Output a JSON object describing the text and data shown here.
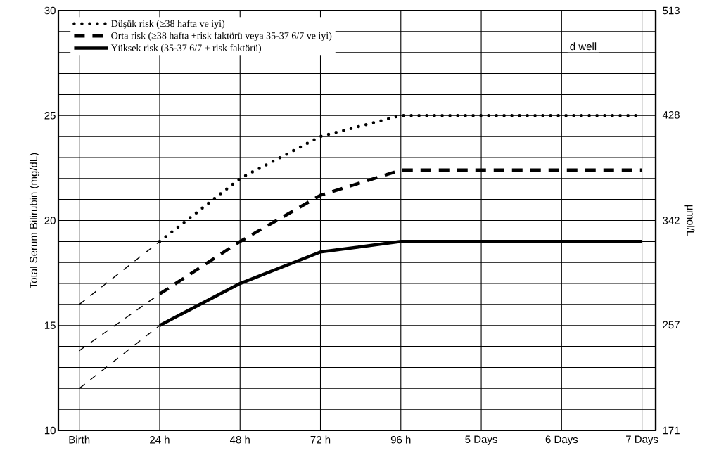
{
  "chart_data": {
    "type": "line",
    "ylabel": "Total Serum Bilirubin (mg/dL)",
    "y2label": "µmol/L",
    "categories": [
      "Birth",
      "24 h",
      "48 h",
      "72 h",
      "96 h",
      "5 Days",
      "6 Days",
      "7 Days"
    ],
    "ylim": [
      10,
      30
    ],
    "yticks": [
      10,
      {
        "value": 11,
        "label": null
      },
      {
        "value": 12,
        "label": null
      },
      {
        "value": 13,
        "label": null
      },
      {
        "value": 14,
        "label": null
      },
      15,
      {
        "value": 16,
        "label": null
      },
      {
        "value": 17,
        "label": null
      },
      {
        "value": 18,
        "label": null
      },
      {
        "value": 19,
        "label": null
      },
      20,
      {
        "value": 21,
        "label": null
      },
      {
        "value": 22,
        "label": null
      },
      {
        "value": 23,
        "label": null
      },
      {
        "value": 24,
        "label": null
      },
      25,
      {
        "value": 26,
        "label": null
      },
      {
        "value": 27,
        "label": null
      },
      {
        "value": 28,
        "label": null
      },
      {
        "value": 29,
        "label": null
      },
      30
    ],
    "y2lim": [
      171,
      513
    ],
    "y2ticks": [
      171,
      257,
      342,
      428,
      513
    ],
    "grid": true,
    "legend": "top left",
    "series": [
      {
        "name": "Düşük risk  (≥38 hafta ve iyi)",
        "color": "#000000",
        "line_style": "dotted",
        "values": [
          null,
          19,
          22,
          24,
          25,
          25,
          25,
          25
        ]
      },
      {
        "name": "Orta risk  (≥38 hafta +risk faktörü veya 35-37 6/7 ve  iyi)",
        "color": "#000000",
        "line_style": "dashed",
        "values": [
          null,
          16.5,
          19,
          21.2,
          22.4,
          22.4,
          22.4,
          22.4
        ]
      },
      {
        "name": "Yüksek risk (35-37 6/7 + risk faktörü)",
        "color": "#000000",
        "line_style": "solid",
        "values": [
          null,
          15,
          17,
          18.5,
          19,
          19,
          19,
          19
        ]
      },
      {
        "color": "#000000",
        "line_style": "dashed",
        "values": [
          16,
          19,
          null,
          null,
          null,
          null,
          null,
          null
        ]
      },
      {
        "color": "#000000",
        "line_style": "dashed",
        "values": [
          13.8,
          16.5,
          null,
          null,
          null,
          null,
          null,
          null
        ]
      },
      {
        "color": "#000000",
        "line_style": "dashed",
        "values": [
          12,
          15,
          null,
          null,
          null,
          null,
          null,
          null
        ]
      }
    ],
    "annotations": [
      "d well"
    ]
  }
}
